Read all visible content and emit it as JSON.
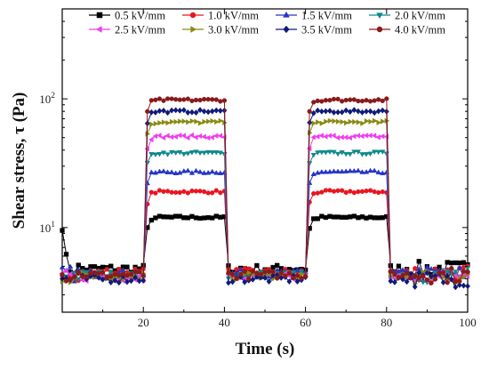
{
  "chart_data": {
    "type": "line",
    "xlabel": "Time (s)",
    "ylabel": "Shear stress, τ (Pa)",
    "xlim": [
      0,
      100
    ],
    "ylim": [
      2.2,
      500
    ],
    "yscale": "log",
    "x_ticks": [
      20,
      40,
      60,
      80,
      100
    ],
    "x_tick_labels": [
      "20",
      "40",
      "60",
      "80",
      "100"
    ],
    "y_ticks": [
      {
        "value": 10,
        "base": "10",
        "exp": "1"
      },
      {
        "value": 100,
        "base": "10",
        "exp": "2"
      }
    ],
    "grid": false,
    "legend_position": "top",
    "step_profile": {
      "field_on_intervals": [
        [
          20,
          40
        ],
        [
          60,
          80
        ]
      ],
      "sample_interval_s": 1
    },
    "series": [
      {
        "name": "0.5 kV/mm",
        "color": "#000000",
        "marker": "square",
        "off_level": 4.8,
        "on_level": 12
      },
      {
        "name": "1.0 kV/mm",
        "color": "#e8161f",
        "marker": "circle",
        "off_level": 4.5,
        "on_level": 19
      },
      {
        "name": "1.5 kV/mm",
        "color": "#2535c8",
        "marker": "triangle-up",
        "off_level": 4.4,
        "on_level": 27
      },
      {
        "name": "2.0 kV/mm",
        "color": "#0e8a8a",
        "marker": "triangle-down",
        "off_level": 4.3,
        "on_level": 38
      },
      {
        "name": "2.5 kV/mm",
        "color": "#f03ef0",
        "marker": "triangle-left",
        "off_level": 4.1,
        "on_level": 51
      },
      {
        "name": "3.0 kV/mm",
        "color": "#8a8a12",
        "marker": "triangle-right",
        "off_level": 4.2,
        "on_level": 66
      },
      {
        "name": "3.5 kV/mm",
        "color": "#101a78",
        "marker": "diamond",
        "off_level": 4.0,
        "on_level": 80
      },
      {
        "name": "4.0 kV/mm",
        "color": "#8b1a1a",
        "marker": "circle",
        "off_level": 4.3,
        "on_level": 98
      }
    ]
  }
}
